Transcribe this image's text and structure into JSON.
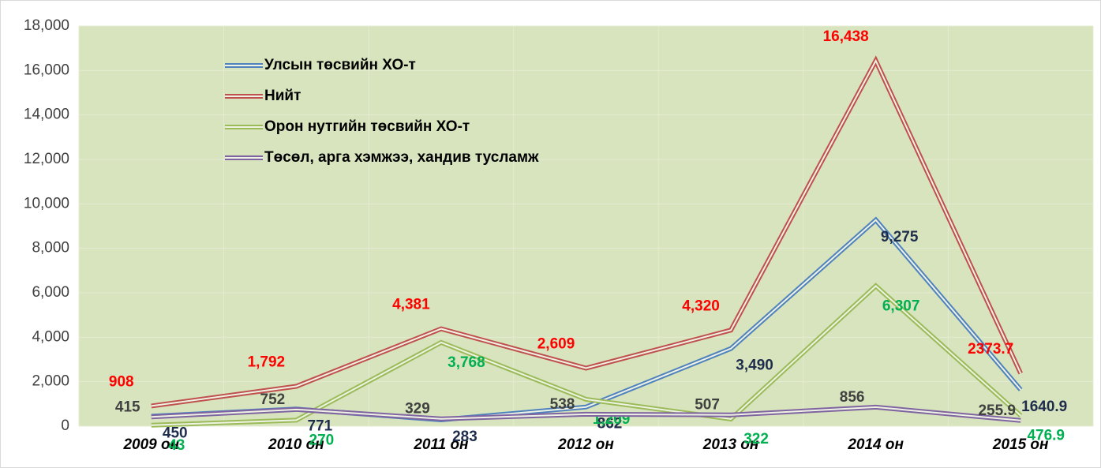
{
  "chart_data": {
    "type": "line",
    "categories": [
      "2009 он",
      "2010 он",
      "2011 он",
      "2012 он",
      "2013 он",
      "2014 он",
      "2015 он"
    ],
    "series": [
      {
        "name": "Улсын төсвийн ХО-т",
        "color": "#4f81bd",
        "label_color": "#1f2d4d",
        "values": [
          450,
          771,
          283,
          862,
          3490,
          9275,
          1640.9
        ],
        "value_labels": [
          "450",
          "771",
          "283",
          "862",
          "3,490",
          "9,275",
          "1640.9"
        ]
      },
      {
        "name": "Нийт",
        "color": "#c0504d",
        "label_color": "#ff0000",
        "values": [
          908,
          1792,
          4381,
          2609,
          4320,
          16438,
          2373.7
        ],
        "value_labels": [
          "908",
          "1,792",
          "4,381",
          "2,609",
          "4,320",
          "16,438",
          "2373.7"
        ]
      },
      {
        "name": "Орон нутгийн төсвийн ХО-т",
        "color": "#9bbb59",
        "label_color": "#00b050",
        "values": [
          43,
          270,
          3768,
          1209,
          322,
          6307,
          476.9
        ],
        "value_labels": [
          "43",
          "270",
          "3,768",
          "1,209",
          "322",
          "6,307",
          "476.9"
        ]
      },
      {
        "name": "Төсөл, арга хэмжээ, хандив тусламж",
        "color": "#8064a2",
        "label_color": "#404040",
        "values": [
          415,
          752,
          329,
          538,
          507,
          856,
          255.9
        ],
        "value_labels": [
          "415",
          "752",
          "329",
          "538",
          "507",
          "856",
          "255.9"
        ]
      }
    ],
    "ylim": [
      0,
      18000
    ],
    "yticks": [
      0,
      {
        "value": 2000,
        "label": "2,000"
      },
      {
        "value": 4000,
        "label": "4,000"
      },
      {
        "value": 6000,
        "label": "6,000"
      },
      {
        "value": 8000,
        "label": "8,000"
      },
      {
        "value": 10000,
        "label": "10,000"
      },
      {
        "value": 12000,
        "label": "12,000"
      },
      {
        "value": 14000,
        "label": "14,000"
      },
      {
        "value": 16000,
        "label": "16,000"
      },
      {
        "value": 18000,
        "label": "18,000"
      }
    ],
    "grid": true,
    "legend": "top-left"
  }
}
